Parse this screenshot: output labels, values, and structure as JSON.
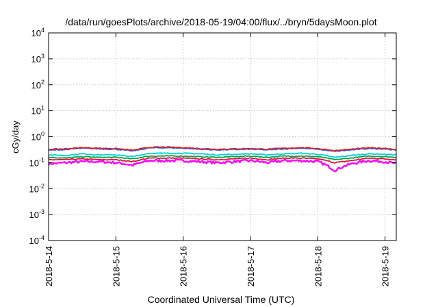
{
  "chart_data": {
    "type": "line",
    "title": "/data/run/goesPlots/archive/2018-05-19/04:00/flux/../bryn/5daysMoon.plot",
    "xlabel": "Coordinated Universal Time (UTC)",
    "ylabel": "cGy/day",
    "yscale": "log",
    "ylim": [
      0.0001,
      10000
    ],
    "y_ticks": [
      {
        "base": "10",
        "exp": "-4",
        "value": 0.0001
      },
      {
        "base": "10",
        "exp": "-3",
        "value": 0.001
      },
      {
        "base": "10",
        "exp": "-2",
        "value": 0.01
      },
      {
        "base": "10",
        "exp": "-1",
        "value": 0.1
      },
      {
        "base": "10",
        "exp": "0",
        "value": 1
      },
      {
        "base": "10",
        "exp": "1",
        "value": 10
      },
      {
        "base": "10",
        "exp": "2",
        "value": 100
      },
      {
        "base": "10",
        "exp": "3",
        "value": 1000
      },
      {
        "base": "10",
        "exp": "4",
        "value": 10000
      }
    ],
    "xlim": [
      "2018-05-14 00:00",
      "2018-05-19 04:00"
    ],
    "x_ticks": [
      "2018-5-14",
      "2018-5-15",
      "2018-5-16",
      "2018-5-17",
      "2018-5-18",
      "2018-5-19"
    ],
    "grid": true,
    "x": [
      "05-14 00:00",
      "05-14 06:00",
      "05-14 12:00",
      "05-14 18:00",
      "05-15 00:00",
      "05-15 06:00",
      "05-15 12:00",
      "05-15 18:00",
      "05-16 00:00",
      "05-16 06:00",
      "05-16 12:00",
      "05-16 18:00",
      "05-17 00:00",
      "05-17 06:00",
      "05-17 12:00",
      "05-17 18:00",
      "05-18 00:00",
      "05-18 06:00",
      "05-18 12:00",
      "05-18 18:00",
      "05-19 00:00",
      "05-19 04:00"
    ],
    "series": [
      {
        "color": "#ff00ff",
        "values": [
          0.09,
          0.1,
          0.11,
          0.11,
          0.1,
          0.08,
          0.12,
          0.12,
          0.12,
          0.11,
          0.1,
          0.11,
          0.12,
          0.1,
          0.12,
          0.12,
          0.11,
          0.05,
          0.09,
          0.12,
          0.11,
          0.09
        ]
      },
      {
        "color": "#e0103c",
        "values": [
          0.13,
          0.13,
          0.14,
          0.13,
          0.13,
          0.11,
          0.15,
          0.15,
          0.15,
          0.14,
          0.13,
          0.14,
          0.15,
          0.13,
          0.15,
          0.15,
          0.14,
          0.1,
          0.12,
          0.15,
          0.14,
          0.13
        ]
      },
      {
        "color": "#00a040",
        "values": [
          0.16,
          0.15,
          0.17,
          0.16,
          0.16,
          0.14,
          0.18,
          0.18,
          0.18,
          0.17,
          0.16,
          0.17,
          0.18,
          0.16,
          0.18,
          0.18,
          0.17,
          0.13,
          0.15,
          0.18,
          0.17,
          0.16
        ]
      },
      {
        "color": "#00d0d0",
        "values": [
          0.2,
          0.19,
          0.22,
          0.2,
          0.2,
          0.17,
          0.23,
          0.23,
          0.23,
          0.22,
          0.2,
          0.21,
          0.22,
          0.2,
          0.22,
          0.23,
          0.21,
          0.16,
          0.19,
          0.22,
          0.21,
          0.2
        ]
      },
      {
        "color": "#2060ff",
        "values": [
          0.3,
          0.32,
          0.36,
          0.34,
          0.33,
          0.28,
          0.37,
          0.38,
          0.36,
          0.33,
          0.31,
          0.32,
          0.33,
          0.31,
          0.34,
          0.36,
          0.33,
          0.27,
          0.31,
          0.35,
          0.34,
          0.3
        ]
      },
      {
        "color": "#e02020",
        "values": [
          0.33,
          0.34,
          0.38,
          0.36,
          0.35,
          0.3,
          0.39,
          0.4,
          0.38,
          0.35,
          0.33,
          0.34,
          0.35,
          0.33,
          0.36,
          0.38,
          0.35,
          0.29,
          0.33,
          0.37,
          0.36,
          0.32
        ]
      }
    ]
  }
}
